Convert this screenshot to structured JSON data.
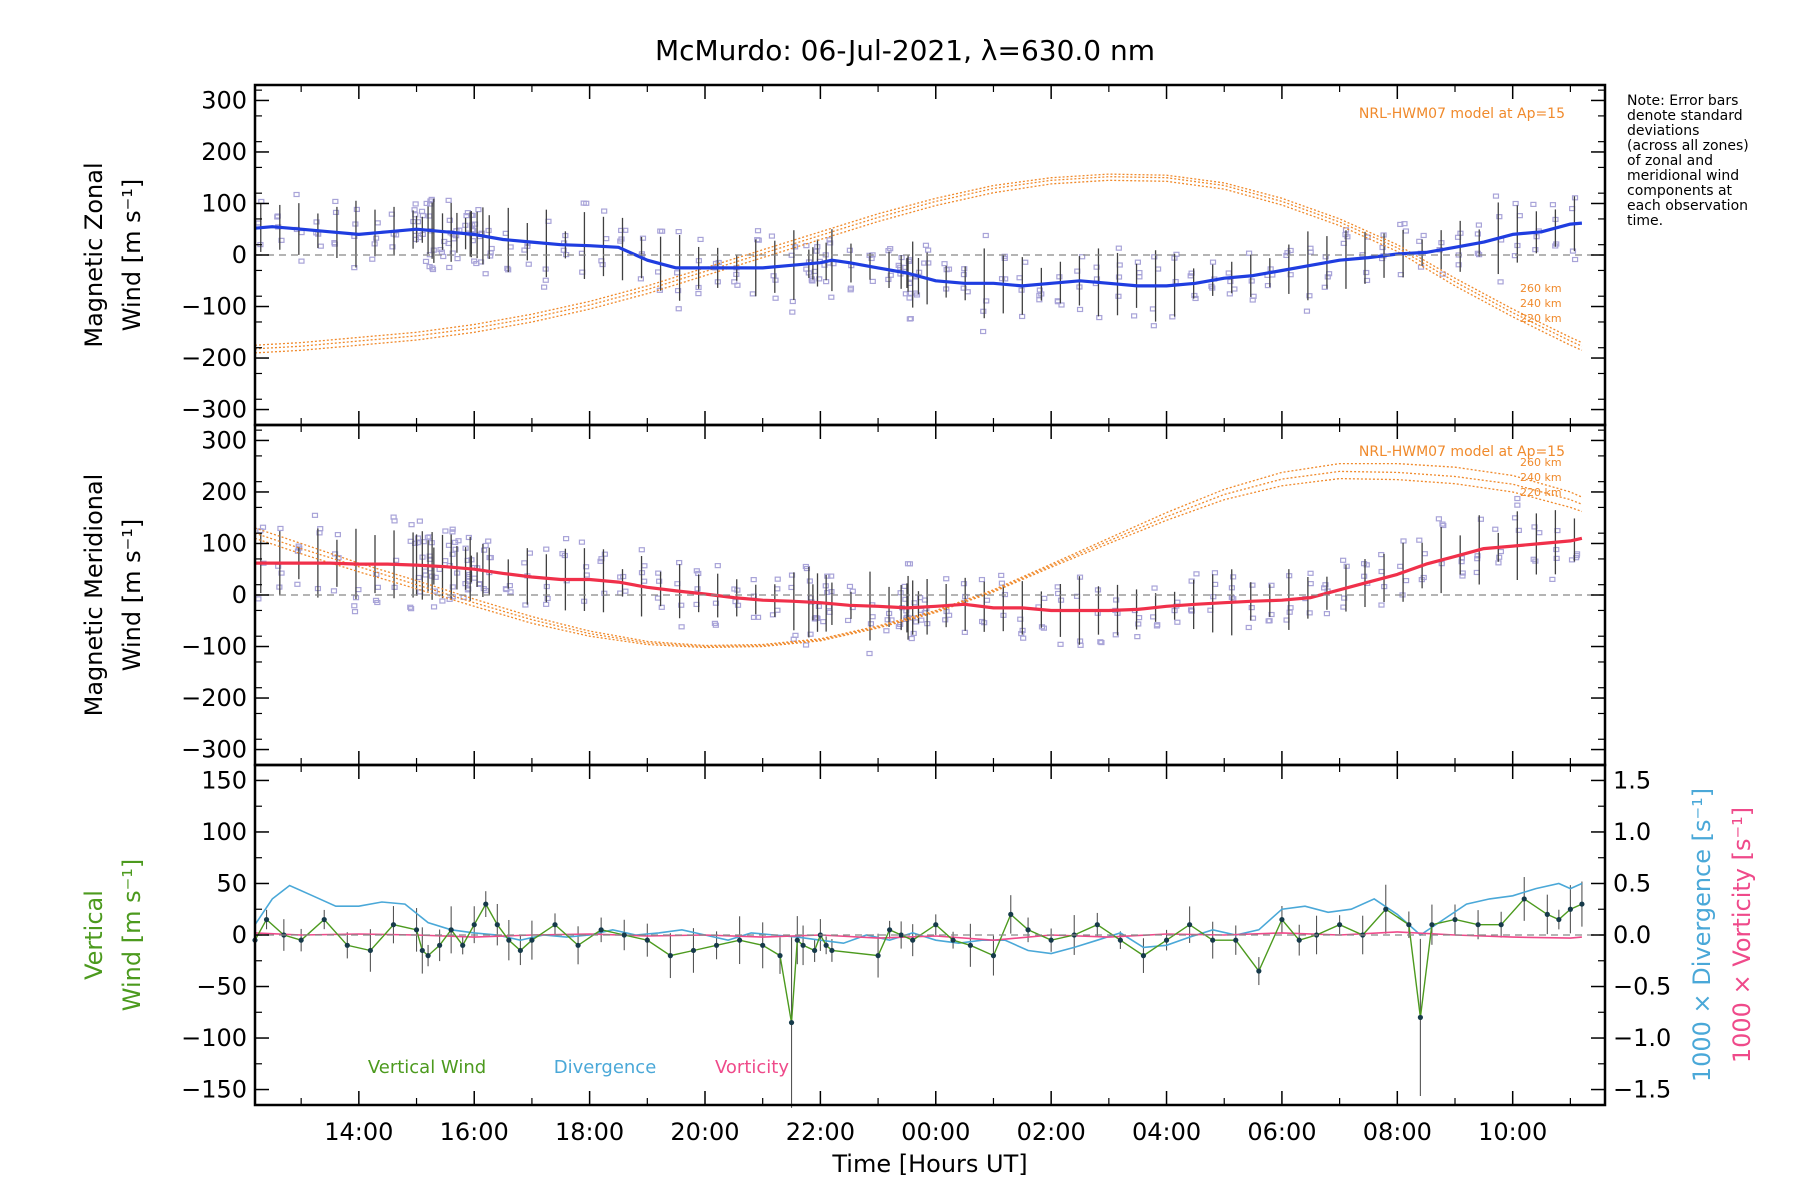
{
  "title": "McMurdo: 06-Jul-2021, λ=630.0 nm",
  "note_lines": [
    "Note: Error bars",
    "denote standard",
    "deviations",
    "(across all zones)",
    "of zonal and",
    "meridional wind",
    "components at",
    "each observation",
    "time."
  ],
  "colors": {
    "zonal": "#1f3de0",
    "meridional": "#f0304a",
    "model": "#f08a2c",
    "vertical": "#4c9a1e",
    "divergence": "#4aa8d8",
    "vorticity": "#ef4a8a",
    "zone_points": "#a8a3d8",
    "errorbar": "#404040",
    "zero_line": "#888888"
  },
  "chart_data": [
    {
      "type": "line",
      "panel": "zonal",
      "title": "McMurdo: 06-Jul-2021, λ=630.0 nm",
      "ylabel_lines": [
        "Magnetic Zonal",
        "Wind [m s⁻¹]"
      ],
      "ylim": [
        -330,
        330
      ],
      "yticks": [
        300,
        200,
        100,
        0,
        -100,
        -200,
        -300
      ],
      "ytick_labels": [
        "300",
        "200",
        "100",
        "0",
        "−100",
        "−200",
        "−300"
      ],
      "model_label": "NRL-HWM07 model at Ap=15",
      "model_alt_labels": [
        "260 km",
        "240 km",
        "220 km"
      ],
      "series": [
        {
          "name": "Zonal wind",
          "x": [
            12.2,
            12.5,
            13,
            13.5,
            14,
            14.5,
            15,
            15.5,
            16,
            16.5,
            17,
            17.5,
            18,
            18.5,
            19,
            19.5,
            20,
            20.5,
            21,
            21.5,
            22,
            22.2,
            22.5,
            23,
            23.5,
            24,
            24.5,
            25,
            25.5,
            26,
            26.5,
            27,
            27.5,
            28,
            28.5,
            29,
            29.5,
            30,
            30.5,
            31,
            31.5,
            32,
            32.5,
            33,
            33.5,
            34,
            34.5,
            35,
            35.2
          ],
          "values": [
            52,
            55,
            50,
            45,
            40,
            45,
            50,
            45,
            40,
            30,
            25,
            20,
            18,
            15,
            -10,
            -25,
            -25,
            -25,
            -25,
            -20,
            -15,
            -10,
            -15,
            -25,
            -35,
            -50,
            -55,
            -55,
            -60,
            -55,
            -50,
            -55,
            -60,
            -60,
            -55,
            -45,
            -40,
            -30,
            -20,
            -10,
            -5,
            2,
            5,
            15,
            25,
            40,
            45,
            60,
            62
          ]
        },
        {
          "name": "NRL-HWM07 260 km",
          "x": [
            12.2,
            13,
            14,
            15,
            16,
            17,
            18,
            19,
            20,
            21,
            22,
            23,
            24,
            25,
            26,
            27,
            28,
            29,
            30,
            31,
            32,
            33,
            34,
            35,
            35.2
          ],
          "values": [
            -175,
            -170,
            -160,
            -150,
            -135,
            -115,
            -90,
            -60,
            -25,
            10,
            45,
            80,
            110,
            135,
            150,
            157,
            155,
            140,
            110,
            70,
            20,
            -45,
            -105,
            -160,
            -170
          ]
        },
        {
          "name": "NRL-HWM07 240 km",
          "x": [
            12.2,
            13,
            14,
            15,
            16,
            17,
            18,
            19,
            20,
            21,
            22,
            23,
            24,
            25,
            26,
            27,
            28,
            29,
            30,
            31,
            32,
            33,
            34,
            35,
            35.2
          ],
          "values": [
            -182,
            -177,
            -167,
            -157,
            -142,
            -122,
            -97,
            -67,
            -32,
            3,
            38,
            73,
            104,
            129,
            145,
            152,
            150,
            135,
            104,
            64,
            14,
            -52,
            -112,
            -167,
            -177
          ]
        },
        {
          "name": "NRL-HWM07 220 km",
          "x": [
            12.2,
            13,
            14,
            15,
            16,
            17,
            18,
            19,
            20,
            21,
            22,
            23,
            24,
            25,
            26,
            27,
            28,
            29,
            30,
            31,
            32,
            33,
            34,
            35,
            35.2
          ],
          "values": [
            -190,
            -185,
            -175,
            -165,
            -150,
            -130,
            -105,
            -75,
            -40,
            -5,
            30,
            65,
            96,
            121,
            138,
            145,
            143,
            128,
            97,
            57,
            7,
            -60,
            -120,
            -175,
            -185
          ]
        }
      ]
    },
    {
      "type": "line",
      "panel": "meridional",
      "ylabel_lines": [
        "Magnetic Meridional",
        "Wind [m s⁻¹]"
      ],
      "ylim": [
        -330,
        330
      ],
      "yticks": [
        300,
        200,
        100,
        0,
        -100,
        -200,
        -300
      ],
      "ytick_labels": [
        "300",
        "200",
        "100",
        "0",
        "−100",
        "−200",
        "−300"
      ],
      "model_label": "NRL-HWM07 model at Ap=15",
      "model_alt_labels": [
        "260 km",
        "240 km",
        "220 km"
      ],
      "series": [
        {
          "name": "Meridional wind",
          "x": [
            12.2,
            12.5,
            13,
            13.5,
            14,
            14.5,
            15,
            15.5,
            16,
            16.5,
            17,
            17.5,
            18,
            18.5,
            19,
            19.5,
            20,
            20.5,
            21,
            21.5,
            22,
            22.5,
            23,
            23.5,
            24,
            24.5,
            25,
            25.5,
            26,
            26.5,
            27,
            27.5,
            28,
            28.5,
            29,
            29.5,
            30,
            30.5,
            31,
            31.5,
            32,
            32.5,
            33,
            33.5,
            34,
            34.5,
            35,
            35.2
          ],
          "values": [
            62,
            62,
            62,
            62,
            60,
            60,
            58,
            55,
            50,
            42,
            35,
            30,
            30,
            25,
            15,
            8,
            2,
            -5,
            -10,
            -12,
            -15,
            -20,
            -22,
            -25,
            -22,
            -18,
            -25,
            -25,
            -30,
            -30,
            -30,
            -28,
            -22,
            -18,
            -15,
            -12,
            -10,
            -5,
            10,
            25,
            40,
            60,
            75,
            90,
            95,
            100,
            105,
            110
          ]
        },
        {
          "name": "NRL-HWM07 260 km",
          "x": [
            12.2,
            13,
            14,
            15,
            16,
            17,
            18,
            19,
            20,
            21,
            22,
            23,
            24,
            25,
            26,
            27,
            28,
            29,
            30,
            31,
            32,
            33,
            34,
            35,
            35.2
          ],
          "values": [
            130,
            100,
            62,
            28,
            -8,
            -42,
            -70,
            -90,
            -98,
            -96,
            -85,
            -60,
            -30,
            10,
            60,
            110,
            160,
            205,
            238,
            255,
            255,
            248,
            232,
            200,
            190
          ]
        },
        {
          "name": "NRL-HWM07 240 km",
          "x": [
            12.2,
            13,
            14,
            15,
            16,
            17,
            18,
            19,
            20,
            21,
            22,
            23,
            24,
            25,
            26,
            27,
            28,
            29,
            30,
            31,
            32,
            33,
            34,
            35,
            35.2
          ],
          "values": [
            120,
            90,
            55,
            20,
            -15,
            -48,
            -75,
            -93,
            -100,
            -98,
            -87,
            -62,
            -32,
            8,
            57,
            105,
            152,
            195,
            225,
            240,
            238,
            230,
            215,
            185,
            176
          ]
        },
        {
          "name": "NRL-HWM07 220 km",
          "x": [
            12.2,
            13,
            14,
            15,
            16,
            17,
            18,
            19,
            20,
            21,
            22,
            23,
            24,
            25,
            26,
            27,
            28,
            29,
            30,
            31,
            32,
            33,
            34,
            35,
            35.2
          ],
          "values": [
            110,
            80,
            45,
            12,
            -22,
            -55,
            -80,
            -96,
            -102,
            -100,
            -89,
            -64,
            -34,
            6,
            54,
            100,
            145,
            185,
            212,
            226,
            224,
            216,
            200,
            170,
            162
          ]
        }
      ]
    },
    {
      "type": "line",
      "panel": "vertical",
      "ylabel_lines": [
        "Vertical",
        "Wind [m s⁻¹]"
      ],
      "ylim": [
        -165,
        165
      ],
      "yticks": [
        150,
        100,
        50,
        0,
        -50,
        -100,
        -150
      ],
      "ytick_labels": [
        "150",
        "100",
        "50",
        "0",
        "−50",
        "−100",
        "−150"
      ],
      "y2label_lines": [
        "1000 × Divergence [s⁻¹]",
        "1000 × Vorticity [s⁻¹]"
      ],
      "y2lim": [
        -1.65,
        1.65
      ],
      "y2ticks": [
        1.5,
        1.0,
        0.5,
        0.0,
        -0.5,
        -1.0,
        -1.5
      ],
      "y2tick_labels": [
        "1.5",
        "1.0",
        "0.5",
        "0.0",
        "−0.5",
        "−1.0",
        "−1.5"
      ],
      "legend": [
        "Vertical Wind",
        "Divergence",
        "Vorticity"
      ],
      "series": [
        {
          "name": "Vertical Wind",
          "x": [
            12.2,
            12.4,
            12.7,
            13,
            13.4,
            13.8,
            14.2,
            14.6,
            15,
            15.1,
            15.2,
            15.4,
            15.6,
            15.8,
            16,
            16.2,
            16.4,
            16.6,
            16.8,
            17,
            17.4,
            17.8,
            18.2,
            18.6,
            19,
            19.4,
            19.8,
            20.2,
            20.6,
            21,
            21.3,
            21.5,
            21.6,
            21.7,
            21.9,
            22,
            22.1,
            22.2,
            23,
            23.2,
            23.4,
            23.6,
            24,
            24.3,
            24.6,
            25,
            25.3,
            25.6,
            26,
            26.4,
            26.8,
            27.2,
            27.6,
            28,
            28.4,
            28.8,
            29.2,
            29.6,
            30,
            30.3,
            30.6,
            31,
            31.4,
            31.8,
            32.2,
            32.4,
            32.6,
            33,
            33.4,
            33.8,
            34.2,
            34.6,
            34.8,
            35,
            35.2
          ],
          "values": [
            -5,
            15,
            0,
            -5,
            15,
            -10,
            -15,
            10,
            5,
            -15,
            -20,
            -10,
            5,
            -10,
            10,
            30,
            10,
            -5,
            -15,
            -5,
            10,
            -10,
            5,
            0,
            -5,
            -20,
            -15,
            -10,
            -5,
            -10,
            -20,
            -85,
            -5,
            -10,
            -15,
            0,
            -10,
            -15,
            -20,
            5,
            0,
            -5,
            10,
            -5,
            -10,
            -20,
            20,
            5,
            -5,
            0,
            10,
            -5,
            -20,
            -5,
            10,
            -5,
            -5,
            -35,
            15,
            -5,
            0,
            10,
            0,
            25,
            10,
            -80,
            10,
            15,
            10,
            10,
            35,
            20,
            15,
            25,
            30
          ]
        },
        {
          "name": "Divergence",
          "x": [
            12.2,
            12.5,
            12.8,
            13.2,
            13.6,
            14,
            14.4,
            14.8,
            15.2,
            15.6,
            16,
            16.4,
            16.8,
            17.2,
            17.6,
            18,
            18.4,
            18.8,
            19.2,
            19.6,
            20,
            20.4,
            20.8,
            21.2,
            21.6,
            22,
            22.4,
            22.8,
            23.2,
            23.6,
            24,
            24.4,
            24.8,
            25.2,
            25.6,
            26,
            26.4,
            26.8,
            27.2,
            27.6,
            28,
            28.4,
            28.8,
            29.2,
            29.6,
            30,
            30.4,
            30.8,
            31.2,
            31.6,
            32,
            32.4,
            32.8,
            33.2,
            33.6,
            34,
            34.4,
            34.8,
            35,
            35.2
          ],
          "values": [
            0.1,
            0.35,
            0.48,
            0.38,
            0.28,
            0.28,
            0.32,
            0.3,
            0.12,
            0.05,
            0.02,
            0.0,
            -0.05,
            0.0,
            -0.02,
            0.0,
            0.05,
            0.0,
            0.02,
            0.05,
            0.0,
            -0.05,
            0.02,
            0.0,
            -0.02,
            -0.05,
            -0.08,
            0.0,
            -0.05,
            0.02,
            -0.05,
            -0.08,
            -0.05,
            -0.05,
            -0.15,
            -0.18,
            -0.12,
            -0.05,
            0.02,
            -0.12,
            -0.1,
            -0.02,
            0.05,
            0.0,
            0.05,
            0.25,
            0.28,
            0.22,
            0.25,
            0.35,
            0.2,
            0.0,
            0.15,
            0.3,
            0.35,
            0.38,
            0.45,
            0.5,
            0.45,
            0.5
          ]
        },
        {
          "name": "Vorticity",
          "x": [
            12.2,
            13,
            14,
            15,
            16,
            17,
            18,
            19,
            20,
            21,
            22,
            23,
            24,
            25,
            26,
            27,
            28,
            29,
            30,
            31,
            32,
            33,
            34,
            35,
            35.2
          ],
          "values": [
            0.02,
            0.0,
            0.01,
            0.0,
            -0.02,
            0.0,
            0.01,
            -0.01,
            0.0,
            -0.02,
            0.0,
            -0.03,
            -0.01,
            -0.05,
            0.0,
            -0.02,
            0.01,
            0.0,
            0.02,
            0.0,
            0.03,
            0.0,
            -0.02,
            -0.03,
            -0.02
          ]
        }
      ]
    }
  ],
  "xaxis": {
    "label": "Time [Hours UT]",
    "xlim": [
      12.2,
      35.6
    ],
    "tick_positions": [
      14,
      16,
      18,
      20,
      22,
      24,
      26,
      28,
      30,
      32,
      34
    ],
    "tick_labels": [
      "14:00",
      "16:00",
      "18:00",
      "20:00",
      "22:00",
      "00:00",
      "02:00",
      "04:00",
      "06:00",
      "08:00",
      "10:00"
    ]
  }
}
